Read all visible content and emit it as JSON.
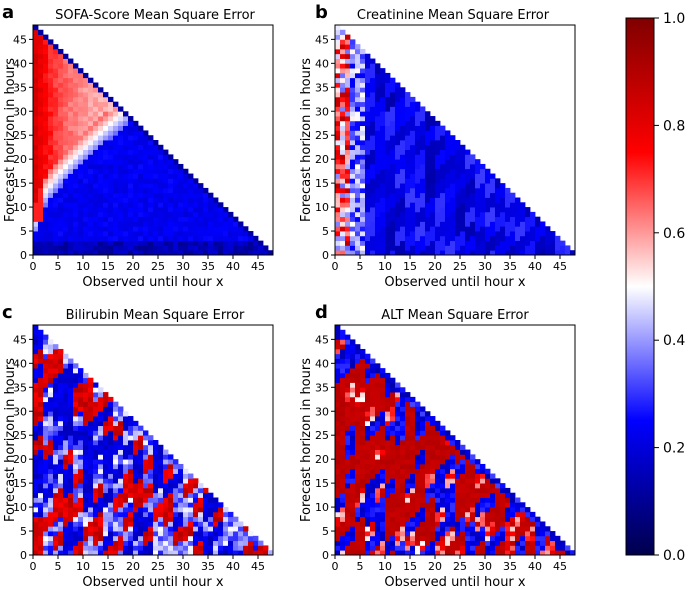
{
  "chart_data": [
    {
      "type": "heatmap",
      "panel_label": "a",
      "title": "SOFA-Score Mean Square Error",
      "xlabel": "Observed until hour x",
      "ylabel": "Forecast horizon in hours",
      "xlim": [
        0,
        48
      ],
      "ylim": [
        0,
        48
      ],
      "xticks": [
        "0",
        "5",
        "10",
        "15",
        "20",
        "25",
        "30",
        "35",
        "40",
        "45"
      ],
      "yticks": [
        "0",
        "5",
        "10",
        "15",
        "20",
        "25",
        "30",
        "35",
        "40",
        "45"
      ],
      "pattern": "smooth",
      "value_range": [
        0,
        1
      ],
      "mask": "lower-left triangle (x + y <= 48)"
    },
    {
      "type": "heatmap",
      "panel_label": "b",
      "title": "Creatinine Mean Square Error",
      "xlabel": "Observed until hour x",
      "ylabel": "Forecast horizon in hours",
      "xlim": [
        0,
        48
      ],
      "ylim": [
        0,
        48
      ],
      "xticks": [
        "0",
        "5",
        "10",
        "15",
        "20",
        "25",
        "30",
        "35",
        "40",
        "45"
      ],
      "yticks": [
        "0",
        "5",
        "10",
        "15",
        "20",
        "25",
        "30",
        "35",
        "40",
        "45"
      ],
      "pattern": "low",
      "value_range": [
        0,
        1
      ],
      "mask": "lower-left triangle (x + y <= 48)"
    },
    {
      "type": "heatmap",
      "panel_label": "c",
      "title": "Bilirubin Mean Square Error",
      "xlabel": "Observed until hour x",
      "ylabel": "Forecast horizon in hours",
      "xlim": [
        0,
        48
      ],
      "ylim": [
        0,
        48
      ],
      "xticks": [
        "0",
        "5",
        "10",
        "15",
        "20",
        "25",
        "30",
        "35",
        "40",
        "45"
      ],
      "yticks": [
        "0",
        "5",
        "10",
        "15",
        "20",
        "25",
        "30",
        "35",
        "40",
        "45"
      ],
      "pattern": "mixed",
      "value_range": [
        0,
        1
      ],
      "mask": "lower-left triangle (x + y <= 48)"
    },
    {
      "type": "heatmap",
      "panel_label": "d",
      "title": "ALT Mean Square Error",
      "xlabel": "Observed until hour x",
      "ylabel": "Forecast horizon in hours",
      "xlim": [
        0,
        48
      ],
      "ylim": [
        0,
        48
      ],
      "xticks": [
        "0",
        "5",
        "10",
        "15",
        "20",
        "25",
        "30",
        "35",
        "40",
        "45"
      ],
      "yticks": [
        "0",
        "5",
        "10",
        "15",
        "20",
        "25",
        "30",
        "35",
        "40",
        "45"
      ],
      "pattern": "high",
      "value_range": [
        0,
        1
      ],
      "mask": "lower-left triangle (x + y <= 48)"
    }
  ],
  "colorbar": {
    "colormap": "seismic",
    "min": 0,
    "max": 1,
    "ticks": [
      "0.0",
      "0.2",
      "0.4",
      "0.6",
      "0.8",
      "1.0"
    ],
    "colors": [
      "#00004c",
      "#0000ff",
      "#ffffff",
      "#ff0000",
      "#800000"
    ]
  }
}
